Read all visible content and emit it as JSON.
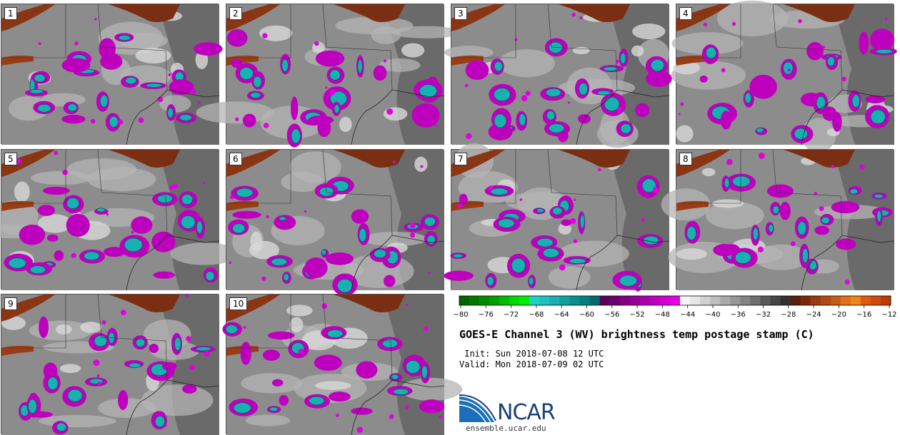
{
  "members": [
    "1",
    "2",
    "3",
    "4",
    "5",
    "6",
    "7",
    "8",
    "9",
    "10"
  ],
  "colorbar": {
    "ticks": [
      "−80",
      "−76",
      "−72",
      "−68",
      "−64",
      "−60",
      "−56",
      "−52",
      "−48",
      "−44",
      "−40",
      "−36",
      "−32",
      "−28",
      "−24",
      "−20",
      "−16",
      "−12"
    ],
    "colors": [
      "#006400",
      "#007800",
      "#008c00",
      "#00a000",
      "#00bd00",
      "#00d800",
      "#00ee00",
      "#20d0c0",
      "#20c0c0",
      "#18b0b0",
      "#10a0a0",
      "#089090",
      "#008080",
      "#006a6a",
      "#5a005a",
      "#6e006e",
      "#820082",
      "#960096",
      "#aa00aa",
      "#be00be",
      "#d200d2",
      "#e600e6",
      "#f5f5f5",
      "#e6e6e6",
      "#d2d2d2",
      "#bebebe",
      "#aaaaaa",
      "#969696",
      "#828282",
      "#6e6e6e",
      "#5a5a5a",
      "#464646",
      "#323232",
      "#5a1e0a",
      "#7a2a0a",
      "#9a3a10",
      "#b04a15",
      "#c85a18",
      "#e0701a",
      "#f08418",
      "#e05a10",
      "#d04a08",
      "#c03a00"
    ]
  },
  "title": "GOES-E Channel 3 (WV) brightness temp postage stamp (C)",
  "init": " Init: Sun 2018-07-08 12 UTC",
  "valid": "Valid: Mon 2018-07-09 02 UTC",
  "logo": {
    "text": "NCAR",
    "site": "ensemble.ucar.edu"
  }
}
